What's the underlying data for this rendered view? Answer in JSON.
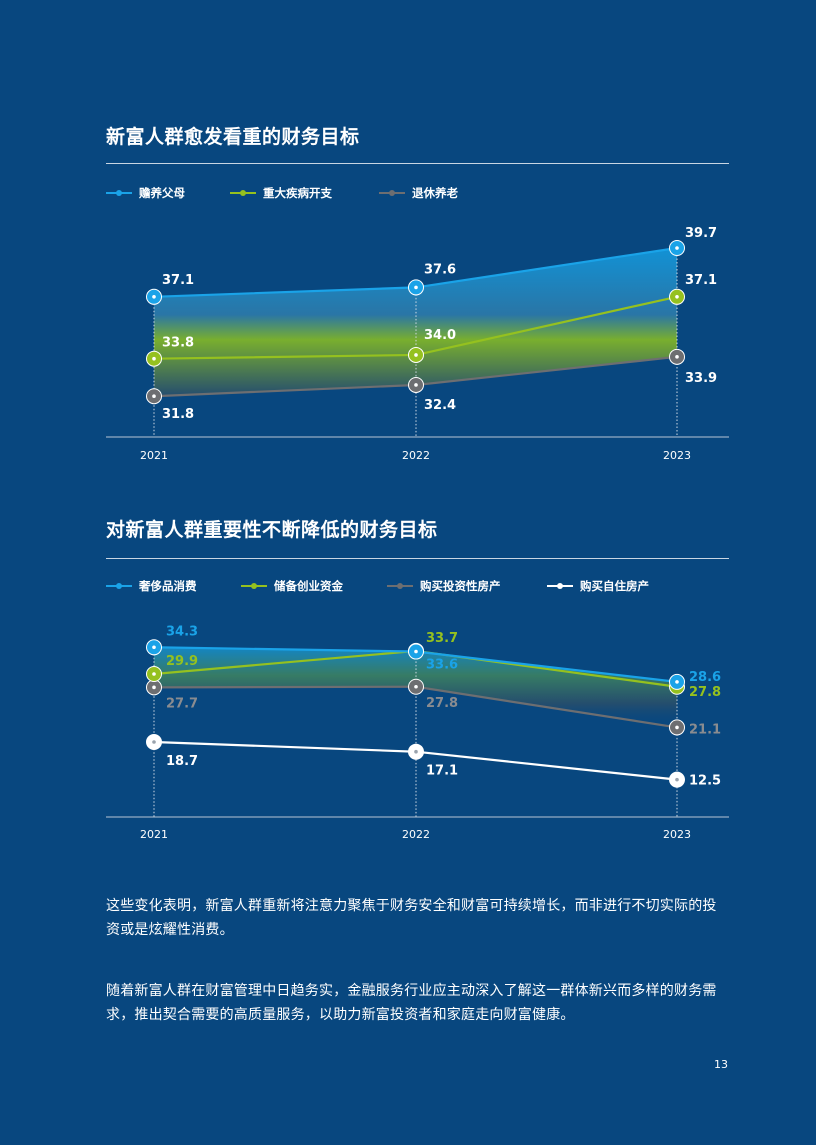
{
  "charts": [
    {
      "title": "新富人群愈发看重的财务目标",
      "legend": [
        {
          "label": "赡养父母",
          "color": "#1aa3e8"
        },
        {
          "label": "重大疾病开支",
          "color": "#95c11f"
        },
        {
          "label": "退休养老",
          "color": "#6d6e71"
        }
      ]
    },
    {
      "title": "对新富人群重要性不断降低的财务目标",
      "legend": [
        {
          "label": "奢侈品消费",
          "color": "#1aa3e8"
        },
        {
          "label": "储备创业资金",
          "color": "#95c11f"
        },
        {
          "label": "购买投资性房产",
          "color": "#6d6e71"
        },
        {
          "label": "购买自住房产",
          "color": "#ffffff"
        }
      ]
    }
  ],
  "chart_data": [
    {
      "type": "line",
      "title": "新富人群愈发看重的财务目标",
      "x": [
        "2021",
        "2022",
        "2023"
      ],
      "series": [
        {
          "name": "赡养父母",
          "color": "#1aa3e8",
          "values": [
            37.1,
            37.6,
            39.7
          ]
        },
        {
          "name": "重大疾病开支",
          "color": "#95c11f",
          "values": [
            33.8,
            34.0,
            37.1
          ]
        },
        {
          "name": "退休养老",
          "color": "#6d6e71",
          "values": [
            31.8,
            32.4,
            33.9
          ]
        }
      ],
      "xlabel": "",
      "ylabel": "",
      "ylim": [
        30,
        40.5
      ],
      "grid": false,
      "legend_position": "top-left"
    },
    {
      "type": "line",
      "title": "对新富人群重要性不断降低的财务目标",
      "x": [
        "2021",
        "2022",
        "2023"
      ],
      "series": [
        {
          "name": "奢侈品消费",
          "color": "#1aa3e8",
          "values": [
            34.3,
            33.6,
            28.6
          ]
        },
        {
          "name": "储备创业资金",
          "color": "#95c11f",
          "values": [
            29.9,
            33.7,
            27.8
          ]
        },
        {
          "name": "购买投资性房产",
          "color": "#6d6e71",
          "values": [
            27.7,
            27.8,
            21.1
          ]
        },
        {
          "name": "购买自住房产",
          "color": "#ffffff",
          "values": [
            18.7,
            17.1,
            12.5
          ]
        }
      ],
      "xlabel": "",
      "ylabel": "",
      "ylim": [
        7.5,
        35.5
      ],
      "grid": false,
      "legend_position": "top-left"
    }
  ],
  "paragraphs": [
    "这些变化表明，新富人群重新将注意力聚焦于财务安全和财富可持续增长，而非进行不切实际的投资或是炫耀性消费。",
    "随着新富人群在财富管理中日趋务实，金融服务行业应主动深入了解这一群体新兴而多样的财务需求，推出契合需要的高质量服务，以助力新富投资者和家庭走向财富健康。"
  ],
  "page_number": "13"
}
